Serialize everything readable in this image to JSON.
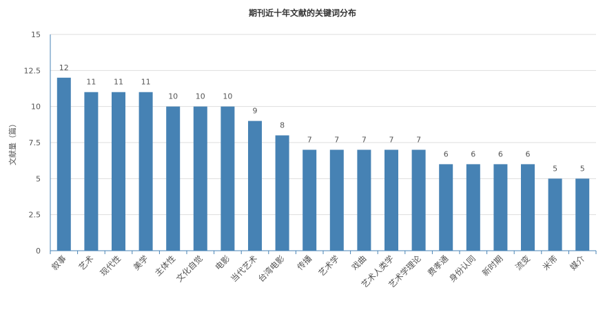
{
  "chart_data": {
    "type": "bar",
    "title": "期刊近十年文献的关键词分布",
    "xlabel": "",
    "ylabel": "文献量（篇）",
    "ylim": [
      0,
      15
    ],
    "yticks": [
      "0",
      "2.5",
      "5",
      "7.5",
      "10",
      "12.5",
      "15"
    ],
    "grid": true,
    "categories": [
      "叙事",
      "艺术",
      "现代性",
      "美学",
      "主体性",
      "文化自觉",
      "电影",
      "当代艺术",
      "台湾电影",
      "传播",
      "艺术学",
      "戏曲",
      "艺术人类学",
      "艺术学理论",
      "费孝通",
      "身份认同",
      "新时期",
      "流变",
      "米芾",
      "媒介"
    ],
    "values": [
      12,
      11,
      11,
      11,
      10,
      10,
      10,
      9,
      8,
      7,
      7,
      7,
      7,
      7,
      6,
      6,
      6,
      6,
      5,
      5
    ],
    "colors": {
      "bar": "#4682b4",
      "axis": "#4682b4",
      "grid": "#dddddd",
      "text": "#555555"
    }
  }
}
